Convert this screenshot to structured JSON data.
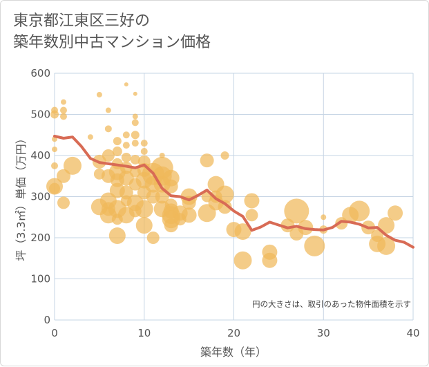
{
  "chart_data": {
    "type": "scatter",
    "title": "東京都江東区三好の\n築年数別中古マンション価格",
    "xlabel": "築年数（年）",
    "ylabel": "坪（3.3㎡）単価（万円）",
    "note": "円の大きさは、取引のあった物件面積を示す",
    "xlim": [
      0,
      40
    ],
    "ylim": [
      0,
      600
    ],
    "xticks": [
      "0",
      "10",
      "20",
      "30",
      "40"
    ],
    "yticks": [
      "0",
      "100",
      "200",
      "300",
      "400",
      "500",
      "600"
    ],
    "grid": true,
    "colors": {
      "bubble": "#f0b95a",
      "line": "#d86b55",
      "grid": "#c5d4e4",
      "frame": "#d8d8d8"
    },
    "series": [
      {
        "type": "bubble",
        "points": [
          [
            0,
            510,
            5
          ],
          [
            0,
            500,
            6
          ],
          [
            0,
            415,
            4
          ],
          [
            0,
            440,
            4
          ],
          [
            0,
            375,
            5
          ],
          [
            0,
            325,
            12
          ],
          [
            0,
            320,
            8
          ],
          [
            1,
            530,
            4
          ],
          [
            1,
            510,
            5
          ],
          [
            1,
            495,
            5
          ],
          [
            1,
            350,
            10
          ],
          [
            1,
            285,
            9
          ],
          [
            2,
            375,
            13
          ],
          [
            4,
            445,
            4
          ],
          [
            5,
            548,
            4
          ],
          [
            5,
            385,
            10
          ],
          [
            5,
            355,
            8
          ],
          [
            5,
            275,
            12
          ],
          [
            6,
            510,
            4
          ],
          [
            6,
            465,
            5
          ],
          [
            6,
            400,
            9
          ],
          [
            6,
            350,
            10
          ],
          [
            6,
            290,
            12
          ],
          [
            6,
            270,
            10
          ],
          [
            6,
            255,
            12
          ],
          [
            7,
            435,
            6
          ],
          [
            7,
            410,
            7
          ],
          [
            7,
            380,
            8
          ],
          [
            7,
            360,
            12
          ],
          [
            7,
            340,
            10
          ],
          [
            7,
            315,
            11
          ],
          [
            7,
            270,
            13
          ],
          [
            7,
            245,
            8
          ],
          [
            7,
            205,
            12
          ],
          [
            8,
            573,
            3
          ],
          [
            8,
            450,
            5
          ],
          [
            8,
            425,
            5
          ],
          [
            8,
            395,
            7
          ],
          [
            8,
            370,
            9
          ],
          [
            8,
            345,
            11
          ],
          [
            8,
            310,
            10
          ],
          [
            8,
            290,
            8
          ],
          [
            8,
            255,
            12
          ],
          [
            9,
            550,
            3
          ],
          [
            9,
            495,
            4
          ],
          [
            9,
            480,
            5
          ],
          [
            9,
            450,
            6
          ],
          [
            9,
            430,
            5
          ],
          [
            9,
            390,
            7
          ],
          [
            9,
            360,
            8
          ],
          [
            9,
            330,
            9
          ],
          [
            9,
            285,
            12
          ],
          [
            9,
            265,
            9
          ],
          [
            10,
            430,
            5
          ],
          [
            10,
            410,
            5
          ],
          [
            10,
            385,
            9
          ],
          [
            10,
            365,
            10
          ],
          [
            10,
            340,
            12
          ],
          [
            10,
            310,
            10
          ],
          [
            10,
            270,
            13
          ],
          [
            10,
            230,
            12
          ],
          [
            11,
            355,
            16
          ],
          [
            11,
            330,
            12
          ],
          [
            11,
            300,
            10
          ],
          [
            11,
            200,
            9
          ],
          [
            12,
            400,
            4
          ],
          [
            12,
            370,
            16
          ],
          [
            12,
            350,
            14
          ],
          [
            12,
            330,
            12
          ],
          [
            12,
            300,
            10
          ],
          [
            12,
            270,
            12
          ],
          [
            13,
            345,
            12
          ],
          [
            13,
            325,
            10
          ],
          [
            13,
            280,
            9
          ],
          [
            13,
            265,
            11
          ],
          [
            13,
            255,
            13
          ],
          [
            13,
            245,
            13
          ],
          [
            13,
            230,
            10
          ],
          [
            14,
            260,
            11
          ],
          [
            14,
            245,
            9
          ],
          [
            15,
            300,
            12
          ],
          [
            15,
            285,
            10
          ],
          [
            15,
            255,
            11
          ],
          [
            17,
            388,
            10
          ],
          [
            17,
            260,
            13
          ],
          [
            17,
            300,
            8
          ],
          [
            18,
            330,
            12
          ],
          [
            18,
            300,
            9
          ],
          [
            18,
            285,
            11
          ],
          [
            19,
            400,
            6
          ],
          [
            19,
            305,
            13
          ],
          [
            19,
            275,
            10
          ],
          [
            20,
            220,
            11
          ],
          [
            21,
            215,
            12
          ],
          [
            21,
            145,
            13
          ],
          [
            22,
            290,
            11
          ],
          [
            22,
            255,
            9
          ],
          [
            24,
            165,
            11
          ],
          [
            24,
            145,
            11
          ],
          [
            26,
            230,
            10
          ],
          [
            27,
            265,
            18
          ],
          [
            27,
            210,
            10
          ],
          [
            28,
            225,
            11
          ],
          [
            29,
            180,
            15
          ],
          [
            30,
            250,
            4
          ],
          [
            30,
            220,
            6
          ],
          [
            32,
            235,
            9
          ],
          [
            33,
            255,
            12
          ],
          [
            34,
            265,
            15
          ],
          [
            35,
            225,
            10
          ],
          [
            36,
            205,
            9
          ],
          [
            36,
            185,
            12
          ],
          [
            37,
            230,
            12
          ],
          [
            37,
            180,
            13
          ],
          [
            38,
            260,
            11
          ]
        ]
      },
      {
        "type": "line",
        "x": [
          0,
          1,
          2,
          3,
          4,
          5,
          6,
          7,
          8,
          9,
          10,
          11,
          12,
          13,
          14,
          15,
          16,
          17,
          18,
          19,
          20,
          21,
          22,
          23,
          24,
          25,
          26,
          27,
          28,
          29,
          30,
          31,
          32,
          33,
          34,
          35,
          36,
          37,
          38,
          39,
          40
        ],
        "values": [
          447,
          442,
          445,
          422,
          393,
          383,
          380,
          377,
          374,
          370,
          377,
          357,
          320,
          302,
          300,
          292,
          303,
          316,
          295,
          283,
          265,
          252,
          218,
          226,
          238,
          231,
          224,
          228,
          222,
          220,
          219,
          225,
          240,
          238,
          233,
          224,
          225,
          206,
          194,
          189,
          177
        ]
      }
    ]
  }
}
